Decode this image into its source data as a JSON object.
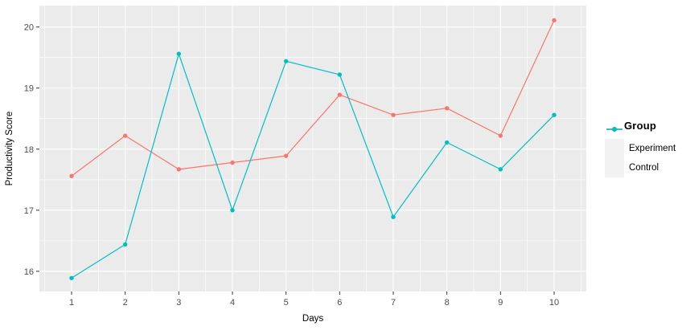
{
  "chart_data": {
    "type": "line",
    "title": "",
    "xlabel": "Days",
    "ylabel": "Productivity Score",
    "x": [
      1,
      2,
      3,
      4,
      5,
      6,
      7,
      8,
      9,
      10
    ],
    "series": [
      {
        "name": "Experiment",
        "color": "#F8766D",
        "values": [
          17.56,
          18.22,
          17.67,
          17.78,
          17.89,
          18.89,
          18.56,
          18.67,
          18.22,
          20.11
        ]
      },
      {
        "name": "Control",
        "color": "#00BFC4",
        "values": [
          15.89,
          16.44,
          19.56,
          17.0,
          19.44,
          19.22,
          16.89,
          18.11,
          17.67,
          18.56
        ]
      }
    ],
    "legend_title": "Group",
    "legend_position": "right",
    "xlim": [
      0.4,
      10.6
    ],
    "ylim": [
      15.67,
      20.35
    ],
    "x_ticks": [
      1,
      2,
      3,
      4,
      5,
      6,
      7,
      8,
      9,
      10
    ],
    "y_ticks": [
      16,
      17,
      18,
      19,
      20
    ],
    "grid": "major+minor",
    "panel_bg": "#EBEBEB",
    "grid_color": "#FFFFFF",
    "tick_color": "#333333",
    "tick_label_color": "#4D4D4D",
    "axis_title_color": "#000000",
    "legend_key_bg": "#F2F2F2"
  }
}
